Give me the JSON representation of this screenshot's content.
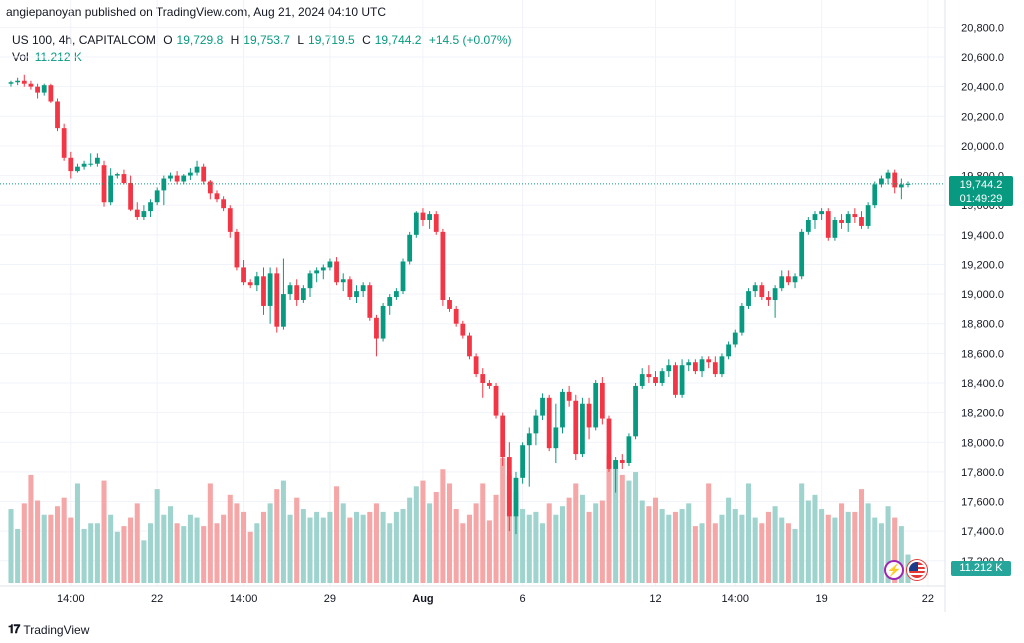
{
  "header": {
    "text": "angiepanoyan published on TradingView.com, Aug 21, 2024 04:10 UTC"
  },
  "legend": {
    "symbol": "US 100, 4h, CAPITALCOM",
    "open_label": "O",
    "open": "19,729.8",
    "high_label": "H",
    "high": "19,753.7",
    "low_label": "L",
    "low": "19,719.5",
    "close_label": "C",
    "close": "19,744.2",
    "change": "+14.5 (+0.07%)",
    "vol_label": "Vol",
    "vol_value": "11.212 K"
  },
  "price_badge": {
    "price": "19,744.2",
    "countdown": "01:49:29"
  },
  "volume_badge": "11.212 K",
  "footer": {
    "brand": "TradingView"
  },
  "colors": {
    "up": "#089981",
    "down": "#f23645",
    "vol_up": "#9fd3cd",
    "vol_down": "#f5a6a6",
    "grid": "#f0f3fa"
  },
  "icons": {
    "flash": "lightning-icon",
    "flag": "us-flag-icon",
    "logo": "tradingview-logo-icon"
  },
  "chart_data": {
    "type": "candlestick",
    "title": "US 100, 4h, CAPITALCOM",
    "y_ticks": [
      17200,
      17400,
      17600,
      17800,
      18000,
      18200,
      18400,
      18600,
      18800,
      19000,
      19200,
      19400,
      19600,
      19800,
      20000,
      20200,
      20400,
      20600,
      20800
    ],
    "y_tick_labels": [
      "17,200.0",
      "17,400.0",
      "17,600.0",
      "17,800.0",
      "18,000.0",
      "18,200.0",
      "18,400.0",
      "18,600.0",
      "18,800.0",
      "19,000.0",
      "19,200.0",
      "19,400.0",
      "19,600.0",
      "19,800.0",
      "20,000.0",
      "20,200.0",
      "20,400.0",
      "20,600.0",
      "20,800.0"
    ],
    "ylim": [
      17050,
      20850
    ],
    "x_tick_labels": [
      {
        "label": "14:00",
        "bar": 9
      },
      {
        "label": "22",
        "bar": 22
      },
      {
        "label": "14:00",
        "bar": 35
      },
      {
        "label": "29",
        "bar": 48
      },
      {
        "label": "Aug",
        "bar": 62
      },
      {
        "label": "6",
        "bar": 77
      },
      {
        "label": "12",
        "bar": 97
      },
      {
        "label": "14:00",
        "bar": 109
      },
      {
        "label": "19",
        "bar": 122
      },
      {
        "label": "22",
        "bar": 138
      }
    ],
    "last_price": 19744.2,
    "candles": [
      [
        20420,
        20440,
        20400,
        20430,
        520
      ],
      [
        20430,
        20460,
        20410,
        20440,
        380
      ],
      [
        20440,
        20480,
        20400,
        20420,
        560
      ],
      [
        20420,
        20440,
        20380,
        20400,
        760
      ],
      [
        20400,
        20420,
        20320,
        20360,
        580
      ],
      [
        20360,
        20420,
        20340,
        20410,
        480
      ],
      [
        20410,
        20420,
        20290,
        20300,
        480
      ],
      [
        20300,
        20320,
        20100,
        20120,
        540
      ],
      [
        20120,
        20150,
        19900,
        19920,
        600
      ],
      [
        19920,
        19960,
        19780,
        19830,
        460
      ],
      [
        19830,
        19880,
        19820,
        19860,
        700
      ],
      [
        19860,
        19900,
        19840,
        19880,
        380
      ],
      [
        19880,
        19950,
        19860,
        19880,
        420
      ],
      [
        19880,
        19950,
        19860,
        19920,
        420
      ],
      [
        19870,
        19900,
        19590,
        19620,
        720
      ],
      [
        19620,
        19850,
        19600,
        19800,
        480
      ],
      [
        19800,
        19820,
        19780,
        19810,
        360
      ],
      [
        19810,
        19840,
        19740,
        19750,
        400
      ],
      [
        19750,
        19800,
        19560,
        19570,
        460
      ],
      [
        19570,
        19620,
        19500,
        19520,
        560
      ],
      [
        19520,
        19600,
        19500,
        19560,
        300
      ],
      [
        19560,
        19640,
        19520,
        19620,
        420
      ],
      [
        19620,
        19720,
        19600,
        19700,
        660
      ],
      [
        19700,
        19800,
        19600,
        19780,
        480
      ],
      [
        19780,
        19820,
        19760,
        19800,
        540
      ],
      [
        19800,
        19830,
        19740,
        19760,
        420
      ],
      [
        19760,
        19810,
        19740,
        19800,
        400
      ],
      [
        19800,
        19850,
        19770,
        19820,
        480
      ],
      [
        19820,
        19900,
        19800,
        19860,
        460
      ],
      [
        19860,
        19880,
        19740,
        19760,
        400
      ],
      [
        19760,
        19770,
        19640,
        19680,
        700
      ],
      [
        19680,
        19700,
        19620,
        19640,
        420
      ],
      [
        19640,
        19660,
        19560,
        19580,
        480
      ],
      [
        19580,
        19600,
        19380,
        19420,
        620
      ],
      [
        19420,
        19440,
        19160,
        19180,
        560
      ],
      [
        19180,
        19230,
        19060,
        19080,
        500
      ],
      [
        19080,
        19100,
        19040,
        19060,
        360
      ],
      [
        19060,
        19150,
        19020,
        19120,
        420
      ],
      [
        19120,
        19180,
        18860,
        18920,
        500
      ],
      [
        18920,
        19180,
        18800,
        19140,
        560
      ],
      [
        19140,
        19180,
        18740,
        18780,
        660
      ],
      [
        18780,
        19240,
        18760,
        19000,
        720
      ],
      [
        19000,
        19080,
        18960,
        19060,
        480
      ],
      [
        19060,
        19100,
        18920,
        18960,
        600
      ],
      [
        18960,
        19060,
        18940,
        19040,
        520
      ],
      [
        19040,
        19160,
        18980,
        19140,
        460
      ],
      [
        19140,
        19180,
        19080,
        19160,
        500
      ],
      [
        19160,
        19200,
        19100,
        19180,
        460
      ],
      [
        19180,
        19240,
        19160,
        19220,
        500
      ],
      [
        19220,
        19250,
        19060,
        19080,
        680
      ],
      [
        19080,
        19140,
        19020,
        19100,
        560
      ],
      [
        19100,
        19120,
        18960,
        18980,
        460
      ],
      [
        18980,
        19060,
        18940,
        19020,
        500
      ],
      [
        19020,
        19080,
        18980,
        19060,
        480
      ],
      [
        19060,
        19080,
        18820,
        18840,
        500
      ],
      [
        18840,
        18860,
        18580,
        18700,
        560
      ],
      [
        18700,
        18940,
        18680,
        18920,
        500
      ],
      [
        18920,
        19000,
        18860,
        18980,
        420
      ],
      [
        18980,
        19040,
        18960,
        19020,
        500
      ],
      [
        19020,
        19240,
        19000,
        19220,
        520
      ],
      [
        19220,
        19420,
        19200,
        19400,
        600
      ],
      [
        19400,
        19560,
        19380,
        19550,
        680
      ],
      [
        19550,
        19580,
        19460,
        19500,
        720
      ],
      [
        19500,
        19560,
        19440,
        19540,
        560
      ],
      [
        19540,
        19560,
        19400,
        19420,
        640
      ],
      [
        19420,
        19440,
        18920,
        18960,
        800
      ],
      [
        18960,
        18980,
        18880,
        18900,
        700
      ],
      [
        18900,
        18920,
        18780,
        18800,
        520
      ],
      [
        18800,
        18820,
        18700,
        18720,
        420
      ],
      [
        18720,
        18740,
        18560,
        18580,
        480
      ],
      [
        18580,
        18600,
        18440,
        18460,
        560
      ],
      [
        18460,
        18500,
        18300,
        18400,
        700
      ],
      [
        18400,
        18420,
        18360,
        18380,
        440
      ],
      [
        18380,
        18400,
        18160,
        18180,
        620
      ],
      [
        18180,
        18200,
        17840,
        17900,
        880
      ],
      [
        17900,
        18000,
        17400,
        17500,
        760
      ],
      [
        17500,
        17800,
        17380,
        17760,
        640
      ],
      [
        17760,
        18000,
        17720,
        17980,
        520
      ],
      [
        17980,
        18100,
        17700,
        18060,
        480
      ],
      [
        18060,
        18220,
        17980,
        18180,
        500
      ],
      [
        18180,
        18330,
        18150,
        18300,
        420
      ],
      [
        18300,
        18320,
        17940,
        17960,
        560
      ],
      [
        17960,
        18260,
        17860,
        18100,
        480
      ],
      [
        18100,
        18360,
        18060,
        18340,
        540
      ],
      [
        18340,
        18380,
        18240,
        18280,
        600
      ],
      [
        18280,
        18320,
        17880,
        17920,
        700
      ],
      [
        17920,
        18300,
        17900,
        18260,
        620
      ],
      [
        18260,
        18300,
        18020,
        18100,
        500
      ],
      [
        18100,
        18420,
        18080,
        18400,
        560
      ],
      [
        18400,
        18440,
        18120,
        18160,
        580
      ],
      [
        18160,
        18180,
        17800,
        17820,
        900
      ],
      [
        17820,
        17900,
        17660,
        17880,
        860
      ],
      [
        17880,
        17920,
        17820,
        17860,
        760
      ],
      [
        17860,
        18060,
        17840,
        18040,
        720
      ],
      [
        18040,
        18400,
        18020,
        18380,
        780
      ],
      [
        18380,
        18500,
        18360,
        18460,
        580
      ],
      [
        18460,
        18520,
        18400,
        18440,
        540
      ],
      [
        18440,
        18480,
        18380,
        18400,
        600
      ],
      [
        18400,
        18500,
        18380,
        18480,
        520
      ],
      [
        18480,
        18560,
        18440,
        18520,
        480
      ],
      [
        18520,
        18540,
        18300,
        18320,
        500
      ],
      [
        18320,
        18560,
        18300,
        18520,
        520
      ],
      [
        18520,
        18560,
        18480,
        18540,
        560
      ],
      [
        18540,
        18560,
        18460,
        18480,
        400
      ],
      [
        18480,
        18580,
        18440,
        18560,
        420
      ],
      [
        18560,
        18580,
        18500,
        18540,
        700
      ],
      [
        18540,
        18580,
        18440,
        18460,
        420
      ],
      [
        18460,
        18600,
        18440,
        18580,
        480
      ],
      [
        18580,
        18680,
        18560,
        18660,
        600
      ],
      [
        18660,
        18760,
        18640,
        18740,
        520
      ],
      [
        18740,
        18940,
        18720,
        18920,
        480
      ],
      [
        18920,
        19040,
        18900,
        19020,
        700
      ],
      [
        19020,
        19080,
        18980,
        19060,
        460
      ],
      [
        19060,
        19080,
        18960,
        18980,
        420
      ],
      [
        18980,
        19020,
        18920,
        18960,
        500
      ],
      [
        18960,
        19060,
        18840,
        19040,
        540
      ],
      [
        19040,
        19160,
        19020,
        19120,
        460
      ],
      [
        19120,
        19160,
        19060,
        19080,
        420
      ],
      [
        19080,
        19140,
        19040,
        19120,
        380
      ],
      [
        19120,
        19440,
        19100,
        19420,
        700
      ],
      [
        19420,
        19520,
        19400,
        19500,
        580
      ],
      [
        19500,
        19560,
        19440,
        19540,
        620
      ],
      [
        19540,
        19580,
        19500,
        19560,
        520
      ],
      [
        19560,
        19580,
        19360,
        19380,
        480
      ],
      [
        19380,
        19520,
        19360,
        19500,
        460
      ],
      [
        19500,
        19540,
        19440,
        19480,
        560
      ],
      [
        19480,
        19560,
        19420,
        19540,
        500
      ],
      [
        19540,
        19580,
        19480,
        19520,
        500
      ],
      [
        19520,
        19560,
        19440,
        19460,
        660
      ],
      [
        19460,
        19620,
        19440,
        19600,
        560
      ],
      [
        19600,
        19760,
        19580,
        19740,
        460
      ],
      [
        19740,
        19800,
        19720,
        19780,
        420
      ],
      [
        19780,
        19840,
        19740,
        19820,
        540
      ],
      [
        19820,
        19840,
        19680,
        19720,
        460
      ],
      [
        19720,
        19780,
        19640,
        19740,
        400
      ],
      [
        19740,
        19760,
        19720,
        19744,
        200
      ]
    ]
  }
}
